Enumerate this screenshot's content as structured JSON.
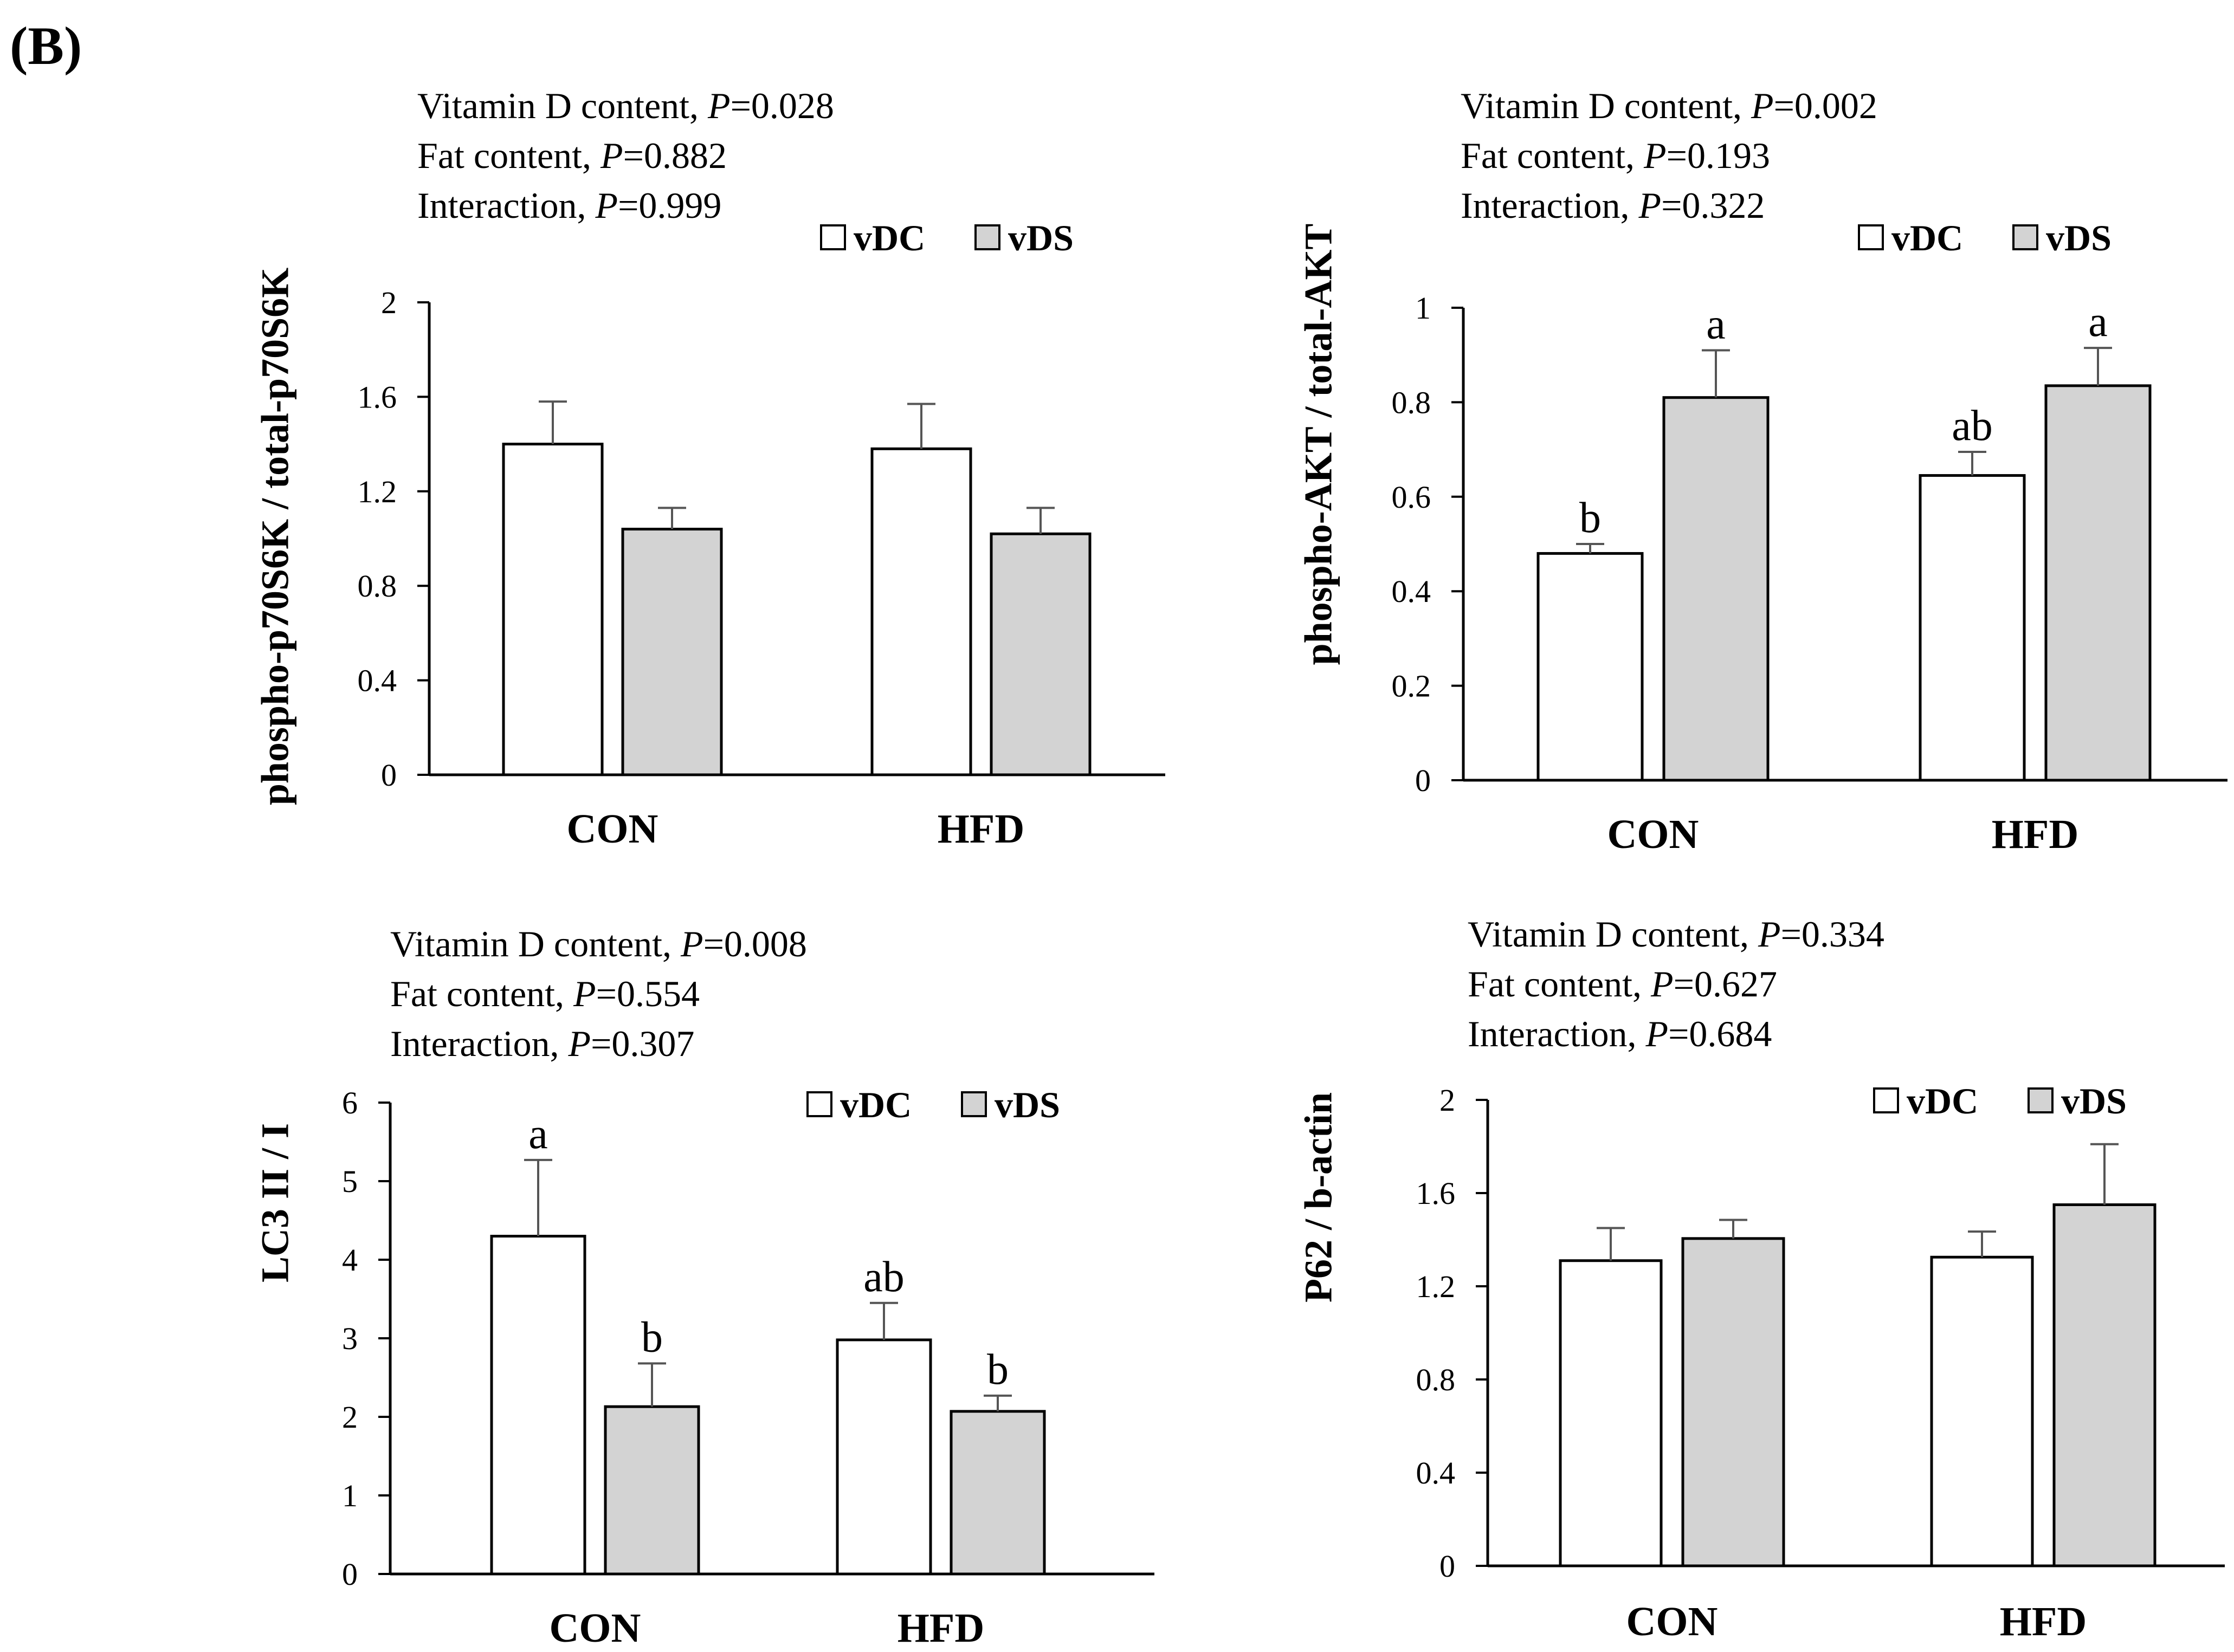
{
  "figure_label": "(B)",
  "colors": {
    "vDC": "#ffffff",
    "vDS": "#d3d3d3",
    "axis": "#000000",
    "error": "#555555"
  },
  "chart_data": [
    {
      "type": "bar",
      "ylabel": "phospho-p70S6K / total-p70S6K",
      "categories": [
        "CON",
        "HFD"
      ],
      "ylim": [
        0,
        2
      ],
      "yticks": [
        "0",
        "0.4",
        "0.8",
        "1.2",
        "1.6",
        "2"
      ],
      "series": [
        {
          "name": "vDC",
          "values": [
            1.4,
            1.38
          ],
          "errors": [
            0.18,
            0.19
          ],
          "labels": [
            "",
            ""
          ]
        },
        {
          "name": "vDS",
          "values": [
            1.04,
            1.02
          ],
          "errors": [
            0.09,
            0.11
          ],
          "labels": [
            "",
            ""
          ]
        }
      ],
      "stats": [
        {
          "label": "Vitamin D content, ",
          "p": "P",
          "value": "=0.028"
        },
        {
          "label": "Fat content, ",
          "p": "P",
          "value": "=0.882"
        },
        {
          "label": "Interaction,  ",
          "p": "P",
          "value": "=0.999"
        }
      ],
      "legend": [
        "vDC",
        "vDS"
      ]
    },
    {
      "type": "bar",
      "ylabel": "phospho-AKT / total-AKT",
      "categories": [
        "CON",
        "HFD"
      ],
      "ylim": [
        0,
        1
      ],
      "yticks": [
        "0",
        "0.2",
        "0.4",
        "0.6",
        "0.8",
        "1"
      ],
      "series": [
        {
          "name": "vDC",
          "values": [
            0.48,
            0.645
          ],
          "errors": [
            0.02,
            0.05
          ],
          "labels": [
            "b",
            "ab"
          ]
        },
        {
          "name": "vDS",
          "values": [
            0.81,
            0.835
          ],
          "errors": [
            0.1,
            0.08
          ],
          "labels": [
            "a",
            "a"
          ]
        }
      ],
      "stats": [
        {
          "label": "Vitamin D content, ",
          "p": "P",
          "value": "=0.002"
        },
        {
          "label": "Fat content, ",
          "p": "P",
          "value": "=0.193"
        },
        {
          "label": "Interaction,  ",
          "p": "P",
          "value": "=0.322"
        }
      ],
      "legend": [
        "vDC",
        "vDS"
      ]
    },
    {
      "type": "bar",
      "ylabel": "LC3 II / I",
      "categories": [
        "CON",
        "HFD"
      ],
      "ylim": [
        0,
        6
      ],
      "yticks": [
        "0",
        "1",
        "2",
        "3",
        "4",
        "5",
        "6"
      ],
      "series": [
        {
          "name": "vDC",
          "values": [
            4.3,
            2.98
          ],
          "errors": [
            0.97,
            0.47
          ],
          "labels": [
            "a",
            "ab"
          ]
        },
        {
          "name": "vDS",
          "values": [
            2.13,
            2.07
          ],
          "errors": [
            0.55,
            0.2
          ],
          "labels": [
            "b",
            "b"
          ]
        }
      ],
      "stats": [
        {
          "label": "Vitamin D content, ",
          "p": "P",
          "value": "=0.008"
        },
        {
          "label": "Fat content, ",
          "p": "P",
          "value": "=0.554"
        },
        {
          "label": "Interaction,  ",
          "p": "P",
          "value": "=0.307"
        }
      ],
      "legend": [
        "vDC",
        "vDS"
      ]
    },
    {
      "type": "bar",
      "ylabel": "P62 / b-actin",
      "categories": [
        "CON",
        "HFD"
      ],
      "ylim": [
        0,
        2
      ],
      "yticks": [
        "0",
        "0.4",
        "0.8",
        "1.2",
        "1.6",
        "2"
      ],
      "series": [
        {
          "name": "vDC",
          "values": [
            1.31,
            1.325
          ],
          "errors": [
            0.14,
            0.11
          ],
          "labels": [
            "",
            ""
          ]
        },
        {
          "name": "vDS",
          "values": [
            1.405,
            1.55
          ],
          "errors": [
            0.08,
            0.26
          ],
          "labels": [
            "",
            ""
          ]
        }
      ],
      "stats": [
        {
          "label": "Vitamin D content, ",
          "p": "P",
          "value": "=0.334"
        },
        {
          "label": "Fat content, ",
          "p": "P",
          "value": "=0.627"
        },
        {
          "label": "Interaction,  ",
          "p": "P",
          "value": "=0.684"
        }
      ],
      "legend": [
        "vDC",
        "vDS"
      ]
    }
  ]
}
